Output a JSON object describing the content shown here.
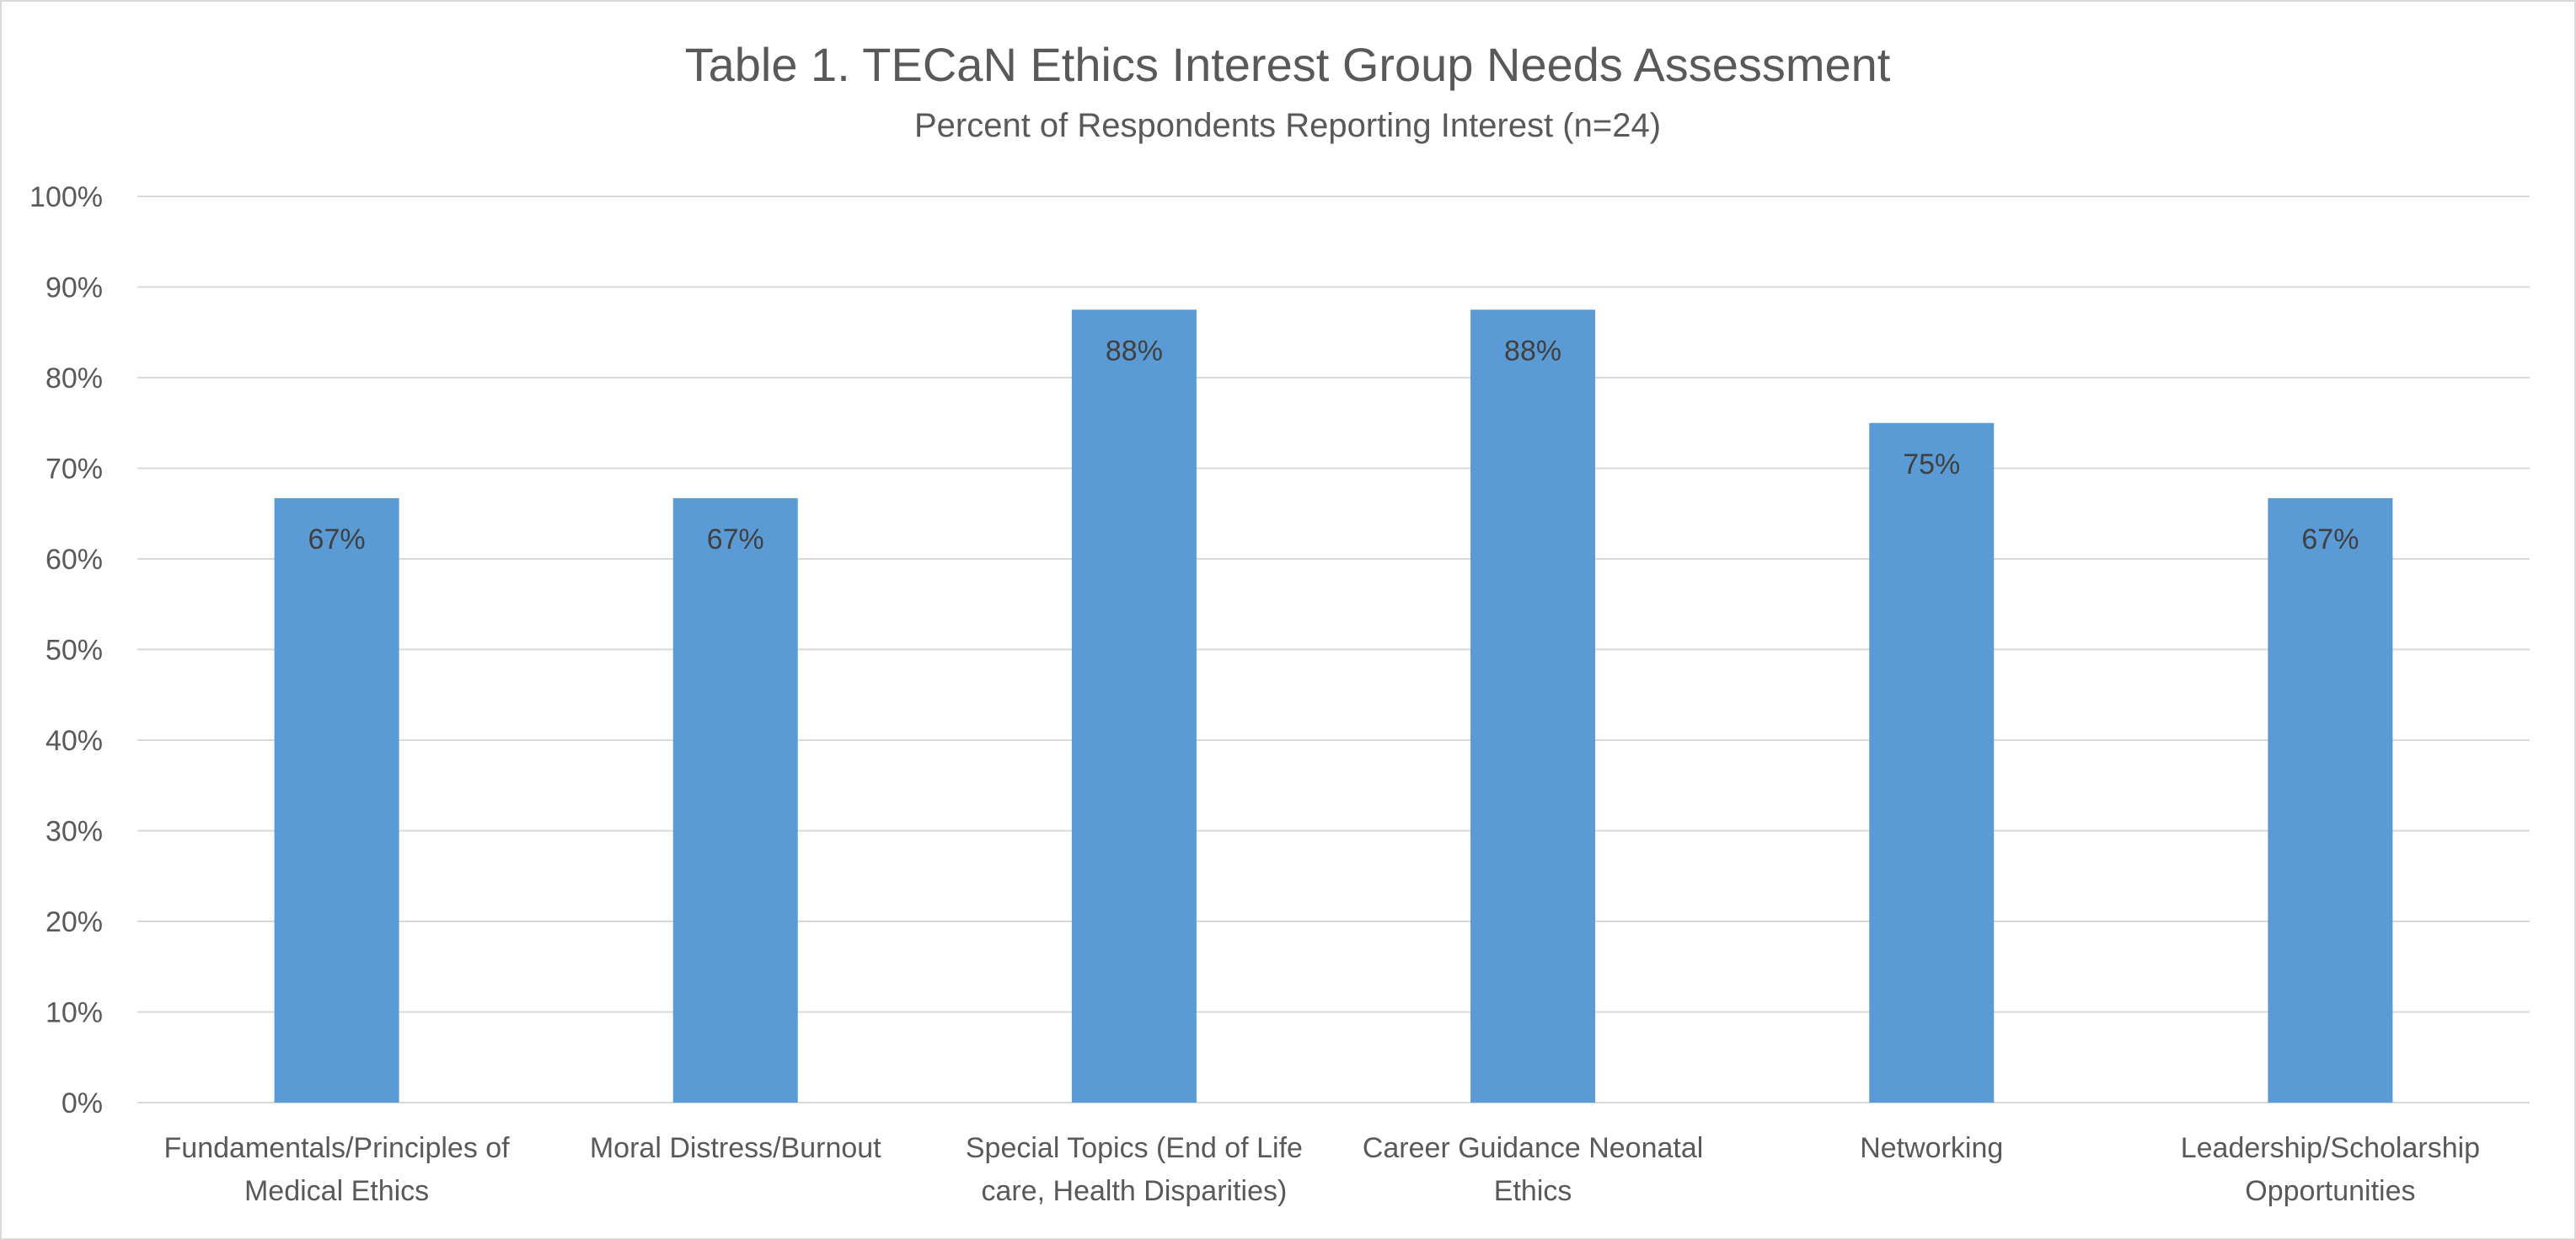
{
  "chart_data": {
    "type": "bar",
    "title": "Table 1. TECaN Ethics Interest Group Needs Assessment",
    "subtitle": "Percent of Respondents Reporting Interest (n=24)",
    "categories": [
      [
        "Fundamentals/Principles of",
        "Medical Ethics"
      ],
      [
        "Moral Distress/Burnout"
      ],
      [
        "Special Topics (End of Life",
        "care, Health Disparities)"
      ],
      [
        "Career Guidance Neonatal",
        "Ethics"
      ],
      [
        "Networking"
      ],
      [
        "Leadership/Scholarship",
        "Opportunities"
      ]
    ],
    "values": [
      66.7,
      66.7,
      87.5,
      87.5,
      75.0,
      66.7
    ],
    "data_labels": [
      "67%",
      "67%",
      "88%",
      "88%",
      "75%",
      "67%"
    ],
    "ylim": [
      0,
      100
    ],
    "yticks": [
      "0%",
      "10%",
      "20%",
      "30%",
      "40%",
      "50%",
      "60%",
      "70%",
      "80%",
      "90%",
      "100%"
    ],
    "xlabel": "",
    "ylabel": "",
    "grid": true,
    "legend": "none",
    "colors": {
      "bar": "#5b9bd5",
      "grid": "#d9d9d9",
      "text": "#595959"
    }
  }
}
